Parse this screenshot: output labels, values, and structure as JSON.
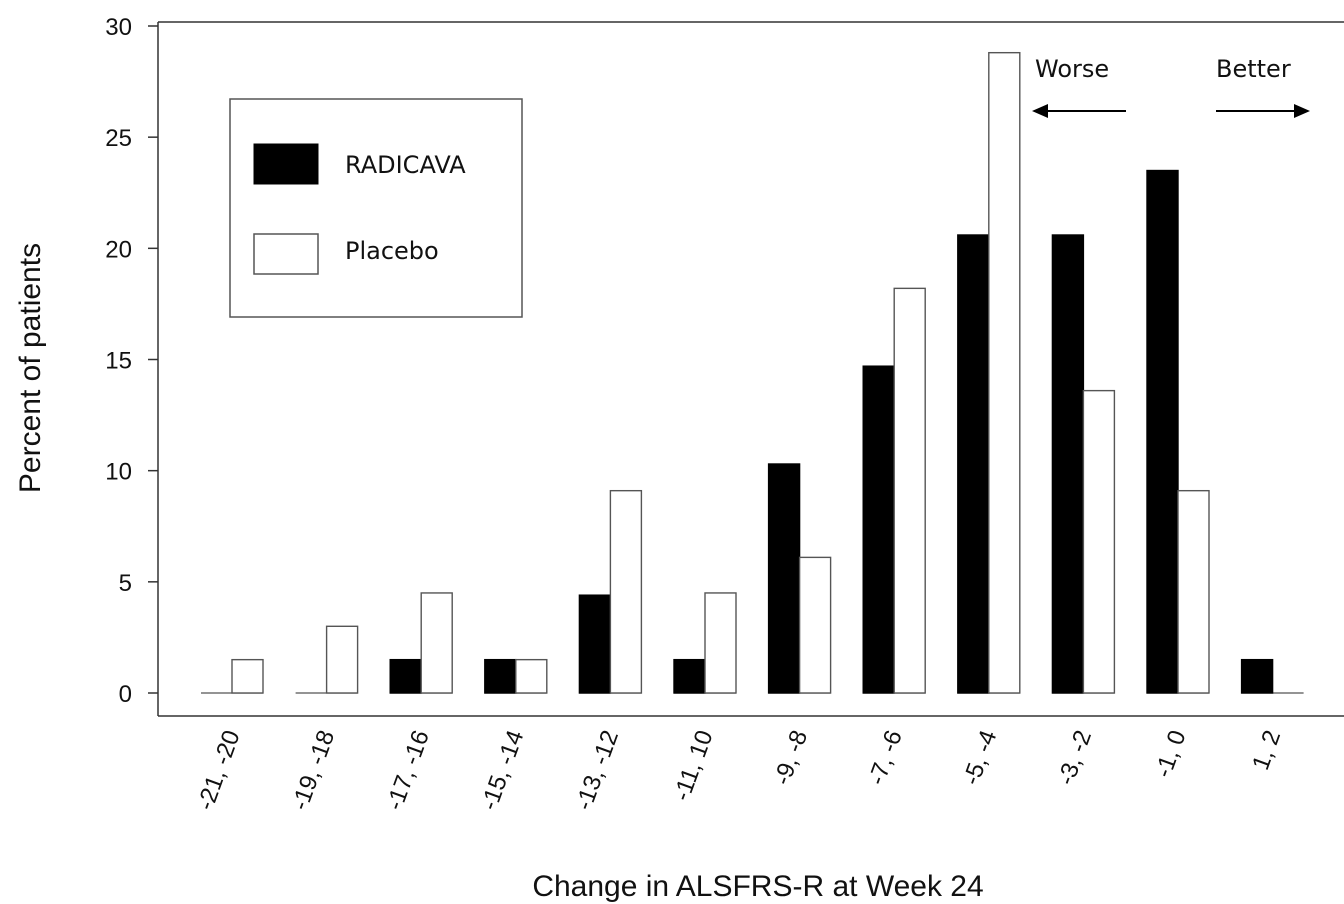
{
  "chart_data": {
    "type": "bar",
    "xlabel": "Change in ALSFRS-R at Week 24",
    "ylabel": "Percent of patients",
    "ylim": [
      0,
      30
    ],
    "yticks": [
      "0",
      "5",
      "10",
      "15",
      "20",
      "25",
      "30"
    ],
    "grid": false,
    "legend_position": "top-left",
    "categories": [
      "-21, -20",
      "-19, -18",
      "-17, -16",
      "-15, -14",
      "-13, -12",
      "-11, 10",
      "-9, -8",
      "-7, -6",
      "-5, -4",
      "-3, -2",
      "-1, 0",
      "1, 2"
    ],
    "series": [
      {
        "name": "RADICAVA",
        "fill": "#000000",
        "values": [
          0,
          0,
          1.5,
          1.5,
          4.4,
          1.5,
          10.3,
          14.7,
          20.6,
          20.6,
          23.5,
          1.5
        ]
      },
      {
        "name": "Placebo",
        "fill": "#ffffff",
        "values": [
          1.5,
          3.0,
          4.5,
          1.5,
          9.1,
          4.5,
          6.1,
          18.2,
          28.8,
          13.6,
          9.1,
          0
        ]
      }
    ],
    "annotations": {
      "worse": "Worse",
      "better": "Better"
    }
  }
}
